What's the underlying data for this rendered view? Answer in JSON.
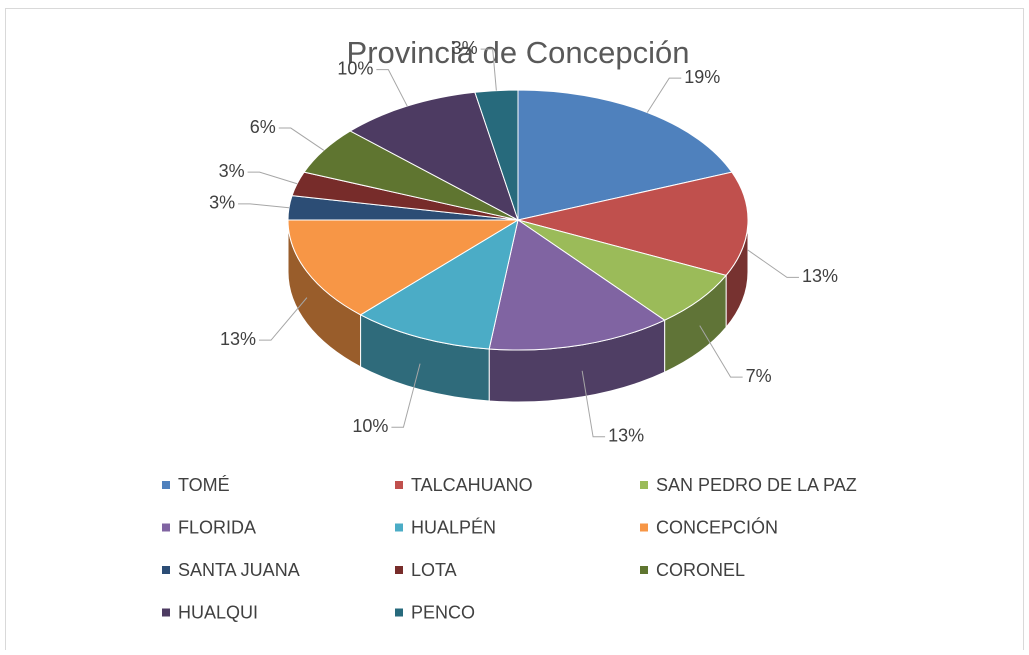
{
  "chart_data": {
    "type": "pie",
    "title": "Provincia de Concepción",
    "categories": [
      "TOMÉ",
      "TALCAHUANO",
      "SAN PEDRO DE LA PAZ",
      "FLORIDA",
      "HUALPÉN",
      "CONCEPCIÓN",
      "SANTA JUANA",
      "LOTA",
      "CORONEL",
      "HUALQUI",
      "PENCO"
    ],
    "values": [
      19,
      13,
      7,
      13,
      10,
      13,
      3,
      3,
      6,
      10,
      3
    ],
    "value_labels": [
      "19%",
      "13%",
      "7%",
      "13%",
      "10%",
      "13%",
      "3%",
      "3%",
      "6%",
      "10%",
      "3%"
    ],
    "colors": [
      "#4f81bd",
      "#c0504d",
      "#9bbb59",
      "#8064a2",
      "#4bacc6",
      "#f79646",
      "#2c4d75",
      "#772c2a",
      "#5f7530",
      "#4d3b62",
      "#276a7c"
    ],
    "legend": "bottom"
  }
}
